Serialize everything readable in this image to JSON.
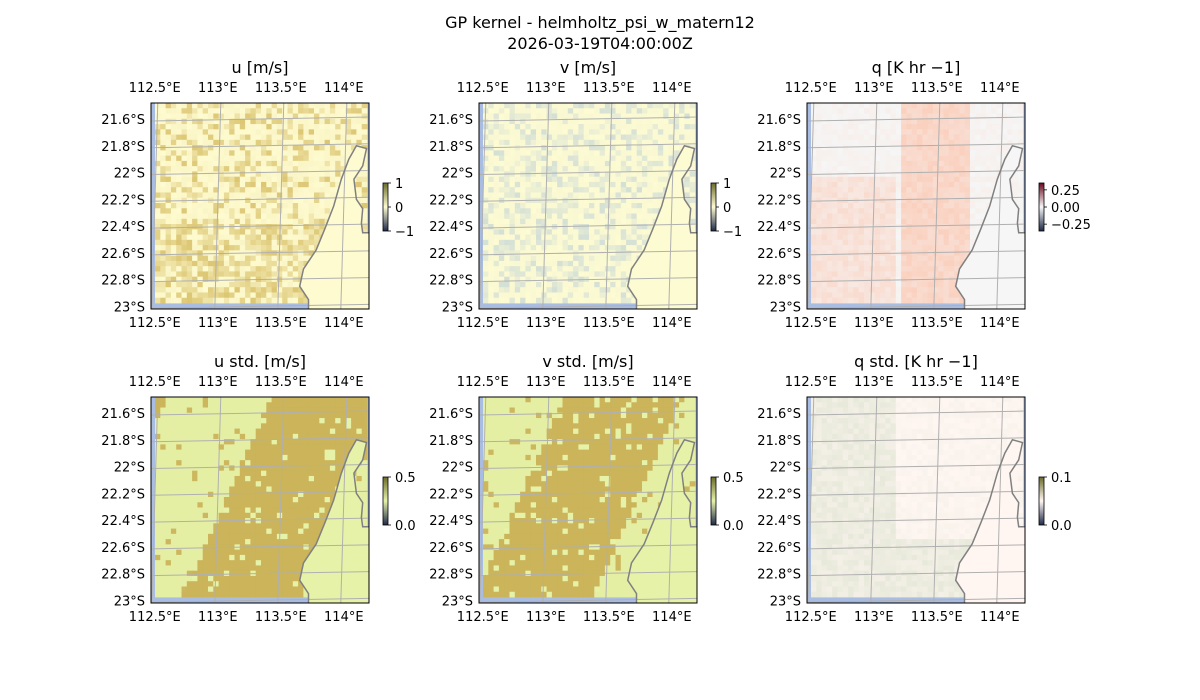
{
  "figure": {
    "title_line1": "GP kernel - helmholtz_psi_w_matern12",
    "title_line2": "2026-03-19T04:00:00Z"
  },
  "chart_data": [
    {
      "type": "heatmap",
      "title": "u [m/s]",
      "x_ticks": [
        "112.5°E",
        "113°E",
        "113.5°E",
        "114°E"
      ],
      "x_tick_values": [
        112.5,
        113.0,
        113.5,
        114.0
      ],
      "y_ticks": [
        "21.6°S",
        "21.8°S",
        "22°S",
        "22.2°S",
        "22.4°S",
        "22.6°S",
        "22.8°S",
        "23°S"
      ],
      "y_tick_values": [
        -21.6,
        -21.8,
        -22.0,
        -22.2,
        -22.4,
        -22.6,
        -22.8,
        -23.0
      ],
      "colorbar": {
        "ticks": [
          "1",
          "0",
          "−1"
        ],
        "tick_values": [
          1,
          0,
          -1
        ],
        "range": [
          -1,
          1
        ]
      },
      "colors": {
        "base": "#fefbd0",
        "accent": "#d8c068"
      }
    },
    {
      "type": "heatmap",
      "title": "v [m/s]",
      "x_ticks": [
        "112.5°E",
        "113°E",
        "113.5°E",
        "114°E"
      ],
      "x_tick_values": [
        112.5,
        113.0,
        113.5,
        114.0
      ],
      "y_ticks": [
        "21.6°S",
        "21.8°S",
        "22°S",
        "22.2°S",
        "22.4°S",
        "22.6°S",
        "22.8°S",
        "23°S"
      ],
      "y_tick_values": [
        -21.6,
        -21.8,
        -22.0,
        -22.2,
        -22.4,
        -22.6,
        -22.8,
        -23.0
      ],
      "colorbar": {
        "ticks": [
          "1",
          "0",
          "−1"
        ],
        "tick_values": [
          1,
          0,
          -1
        ],
        "range": [
          -1,
          1
        ]
      },
      "colors": {
        "base": "#fdfbd2",
        "accent": "#cfdcd6"
      }
    },
    {
      "type": "heatmap",
      "title": "q [K hr −1]",
      "x_ticks": [
        "112.5°E",
        "113°E",
        "113.5°E",
        "114°E"
      ],
      "x_tick_values": [
        112.5,
        113.0,
        113.5,
        114.0
      ],
      "y_ticks": [
        "21.6°S",
        "21.8°S",
        "22°S",
        "22.2°S",
        "22.4°S",
        "22.6°S",
        "22.8°S",
        "23°S"
      ],
      "y_tick_values": [
        -21.6,
        -21.8,
        -22.0,
        -22.2,
        -22.4,
        -22.6,
        -22.8,
        -23.0
      ],
      "colorbar": {
        "ticks": [
          "0.25",
          "0.00",
          "−0.25"
        ],
        "tick_values": [
          0.25,
          0.0,
          -0.25
        ],
        "range": [
          -0.35,
          0.35
        ]
      },
      "colors": {
        "base": "#f6f6f6",
        "accent": "#fbc9b4"
      }
    },
    {
      "type": "heatmap",
      "title": "u std. [m/s]",
      "x_ticks": [
        "112.5°E",
        "113°E",
        "113.5°E",
        "114°E"
      ],
      "x_tick_values": [
        112.5,
        113.0,
        113.5,
        114.0
      ],
      "y_ticks": [
        "21.6°S",
        "21.8°S",
        "22°S",
        "22.2°S",
        "22.4°S",
        "22.6°S",
        "22.8°S",
        "23°S"
      ],
      "y_tick_values": [
        -21.6,
        -21.8,
        -22.0,
        -22.2,
        -22.4,
        -22.6,
        -22.8,
        -23.0
      ],
      "colorbar": {
        "ticks": [
          "0.5",
          "0.0"
        ],
        "tick_values": [
          0.5,
          0.0
        ],
        "range": [
          0,
          0.5
        ]
      },
      "colors": {
        "base": "#e6f2a8",
        "accent": "#cbb45a"
      }
    },
    {
      "type": "heatmap",
      "title": "v std. [m/s]",
      "x_ticks": [
        "112.5°E",
        "113°E",
        "113.5°E",
        "114°E"
      ],
      "x_tick_values": [
        112.5,
        113.0,
        113.5,
        114.0
      ],
      "y_ticks": [
        "21.6°S",
        "21.8°S",
        "22°S",
        "22.2°S",
        "22.4°S",
        "22.6°S",
        "22.8°S",
        "23°S"
      ],
      "y_tick_values": [
        -21.6,
        -21.8,
        -22.0,
        -22.2,
        -22.4,
        -22.6,
        -22.8,
        -23.0
      ],
      "colorbar": {
        "ticks": [
          "0.5",
          "0.0"
        ],
        "tick_values": [
          0.5,
          0.0
        ],
        "range": [
          0,
          0.5
        ]
      },
      "colors": {
        "base": "#e6f2a8",
        "accent": "#cbb45a"
      }
    },
    {
      "type": "heatmap",
      "title": "q std. [K hr −1]",
      "x_ticks": [
        "112.5°E",
        "113°E",
        "113.5°E",
        "114°E"
      ],
      "x_tick_values": [
        112.5,
        113.0,
        113.5,
        114.0
      ],
      "y_ticks": [
        "21.6°S",
        "21.8°S",
        "22°S",
        "22.2°S",
        "22.4°S",
        "22.6°S",
        "22.8°S",
        "23°S"
      ],
      "y_tick_values": [
        -21.6,
        -21.8,
        -22.0,
        -22.2,
        -22.4,
        -22.6,
        -22.8,
        -23.0
      ],
      "colorbar": {
        "ticks": [
          "0.1",
          "0.0"
        ],
        "tick_values": [
          0.1,
          0.0
        ],
        "range": [
          0,
          0.1
        ]
      },
      "colors": {
        "base": "#fff6f2",
        "accent": "#dfe4d2"
      }
    }
  ],
  "map_colors": {
    "ocean": "#a9bde3",
    "coastline": "#808080",
    "gridline": "#b0b0b0"
  }
}
